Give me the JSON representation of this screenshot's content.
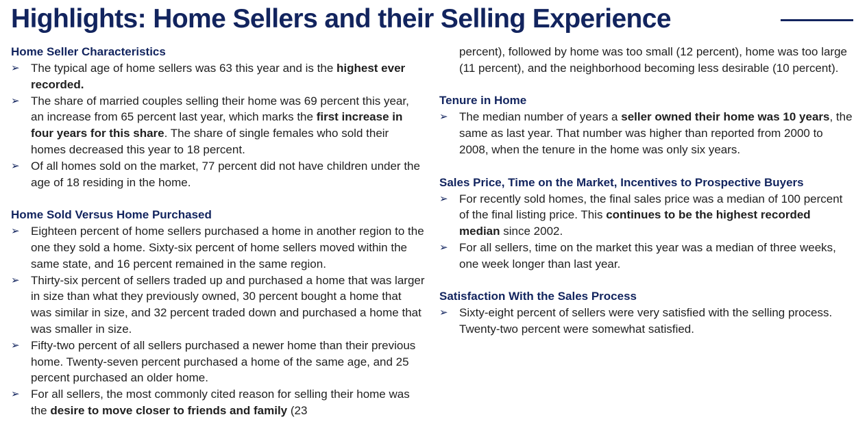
{
  "title": "Highlights: Home Sellers and their Selling Experience",
  "colors": {
    "heading": "#12245e",
    "text": "#1f1f1f"
  },
  "icons": {
    "bullet": "arrow-bullet-icon"
  },
  "sections": {
    "characteristics": {
      "heading": "Home Seller Characteristics",
      "b1": {
        "t1": "The typical age of home sellers was 63 this year and is the ",
        "b1": "highest ever recorded."
      },
      "b2": {
        "t1": "The share of married couples selling their home was 69 percent this year, an increase from 65 percent last year, which marks the ",
        "b1": "first increase in four years for this share",
        "t2": ". The share of single females who sold their homes decreased this year to 18 percent."
      },
      "b3": {
        "t1": "Of all homes sold on the market, 77 percent did not have children under the age of 18 residing in the home."
      }
    },
    "sold_vs_purchased": {
      "heading": "Home Sold Versus Home Purchased",
      "b1": {
        "t1": "Eighteen percent of home sellers purchased a home in another region to the one they sold a home. Sixty-six percent of home sellers moved within the same state, and 16 percent remained in the same region."
      },
      "b2": {
        "t1": "Thirty-six percent of sellers traded up and purchased a home that was larger in size than what they previously owned, 30 percent bought a home that was similar in size, and 32 percent traded down and purchased a home that was smaller in size."
      },
      "b3": {
        "t1": "Fifty-two percent of all sellers purchased a newer home than their previous home. Twenty-seven percent purchased a home of the same age, and 25 percent purchased an older home."
      },
      "b4": {
        "t1": "For all sellers, the most commonly cited reason for selling their home was the ",
        "b1": "desire to move closer to friends and family",
        "t2": " (23"
      },
      "continuation": "percent), followed by home was too small (12 percent), home was too large (11 percent), and the neighborhood becoming less desirable (10 percent)."
    },
    "tenure": {
      "heading": "Tenure in Home",
      "b1": {
        "t1": "The median number of years a ",
        "b1": "seller owned their home was 10 years",
        "t2": ", the same as last year. That number was higher than reported from 2000 to 2008, when the tenure in the home was only six years."
      }
    },
    "sales_price": {
      "heading": "Sales Price, Time on the Market, Incentives to Prospective Buyers",
      "b1": {
        "t1": "For recently sold homes, the final sales price was a median of 100 percent of the final listing price. This ",
        "b1": "continues to be the highest recorded median",
        "t2": " since 2002."
      },
      "b2": {
        "t1": "For all sellers, time on the market this year was a median of three weeks, one week longer than last year."
      }
    },
    "satisfaction": {
      "heading": "Satisfaction With the Sales Process",
      "b1": {
        "t1": "Sixty-eight percent of sellers were very satisfied with the selling process. Twenty-two percent were somewhat satisfied."
      }
    }
  }
}
